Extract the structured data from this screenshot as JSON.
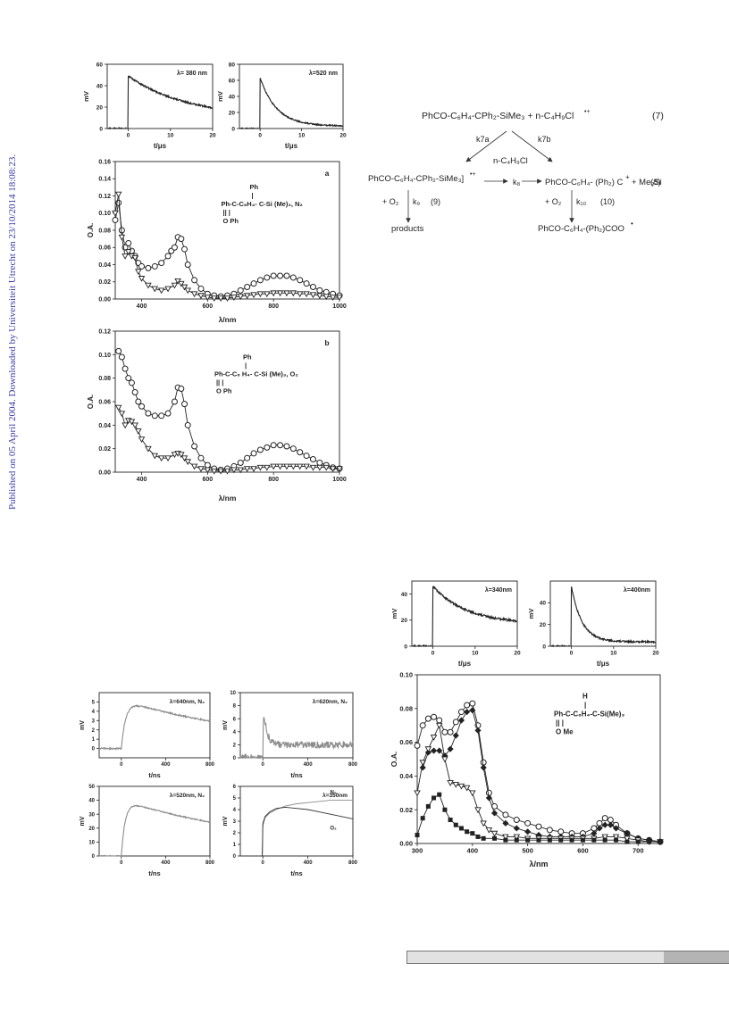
{
  "margin_note": "Published on 05 April 2004. Downloaded by Universiteit Utrecht on 23/10/2014 18:08:23.",
  "colors": {
    "line": "#222222",
    "gray_trace": "#8c8c8c",
    "footer_light": "#e2e2e2",
    "footer_dark": "#b4b4b4",
    "margin_note": "#3a3aa8"
  },
  "scheme": {
    "reactant": "PhCO-C₆H₄-CPh₂-SiMe₃  +  n-C₄H₉Cl",
    "reactant_sup": "•+",
    "eq7": "(7)",
    "k7a": "k7a",
    "k7b": "k7b",
    "nbucl": "n-C₄H₉Cl",
    "left_product": "PhCO-C₆H₄-CPh₂-SiMe₃]",
    "left_product_sup": "•+",
    "k8": "k₈",
    "right_product": "PhCO-C₆H₄- (Ph₂) C",
    "right_product_tail": "+  Me₃Si",
    "eq8": "(8)",
    "o2_left": "+ O₂",
    "k9": "k₉",
    "eq9": "(9)",
    "o2_right": "+ O₂",
    "k10": "k₁₀",
    "eq10": "(10)",
    "products": "products",
    "peroxyl": "PhCO-C₆H₄-(Ph₂)COO"
  },
  "chart_data": [
    {
      "type": "line",
      "id": "k1",
      "title": "λ= 380 nm",
      "ylabel": "mV",
      "xlabel": "t/μs",
      "xlim": [
        -5,
        20
      ],
      "ylim": [
        0,
        60
      ],
      "xticks": [
        0,
        10,
        20
      ],
      "yticks": [
        0,
        20,
        40,
        60
      ],
      "kinetic": {
        "baseline": 0,
        "t0": 0,
        "peak": 49,
        "tau": 14,
        "floor": 10,
        "noise": 0.8
      }
    },
    {
      "type": "line",
      "id": "k2",
      "title": "λ=520 nm",
      "ylabel": "mV",
      "xlabel": "t/μs",
      "xlim": [
        -5,
        20
      ],
      "ylim": [
        0,
        80
      ],
      "xticks": [
        0,
        10,
        20
      ],
      "yticks": [
        0,
        20,
        40,
        60,
        80
      ],
      "kinetic": {
        "baseline": 0,
        "t0": 0,
        "peak": 63,
        "tau": 4,
        "floor": 3,
        "noise": 0.8
      }
    },
    {
      "type": "line",
      "id": "spec_a",
      "panel_label": "a",
      "xlabel": "λ/nm",
      "ylabel": "O.A.",
      "xlim": [
        320,
        1000
      ],
      "ylim": [
        0,
        0.16
      ],
      "xticks": [
        400,
        600,
        800,
        1000
      ],
      "yticks": [
        0,
        0.02,
        0.04,
        0.06,
        0.08,
        0.1,
        0.12,
        0.14,
        0.16
      ],
      "structure": {
        "line1": "Ph",
        "line2": "|",
        "line3": "Ph-C-C₆H₄- C-Si (Me)₃, N₂",
        "line4": "||          |",
        "line5": "O        Ph"
      },
      "series": [
        {
          "marker": "circle",
          "x": [
            320,
            330,
            340,
            350,
            360,
            370,
            380,
            390,
            400,
            420,
            440,
            460,
            480,
            490,
            500,
            510,
            520,
            530,
            540,
            560,
            580,
            600,
            620,
            640,
            660,
            680,
            700,
            720,
            740,
            760,
            780,
            800,
            820,
            840,
            860,
            880,
            900,
            920,
            940,
            960,
            980,
            1000
          ],
          "y": [
            0.092,
            0.112,
            0.08,
            0.06,
            0.065,
            0.056,
            0.05,
            0.042,
            0.038,
            0.036,
            0.038,
            0.042,
            0.05,
            0.056,
            0.06,
            0.072,
            0.07,
            0.058,
            0.04,
            0.022,
            0.012,
            0.006,
            0.004,
            0.003,
            0.004,
            0.006,
            0.01,
            0.014,
            0.018,
            0.022,
            0.025,
            0.027,
            0.027,
            0.027,
            0.025,
            0.022,
            0.018,
            0.014,
            0.01,
            0.008,
            0.006,
            0.004
          ]
        },
        {
          "marker": "triangle-down",
          "x": [
            320,
            330,
            340,
            350,
            360,
            370,
            380,
            390,
            400,
            420,
            440,
            460,
            480,
            500,
            510,
            520,
            530,
            540,
            560,
            580,
            600,
            620,
            640,
            660,
            680,
            700,
            720,
            740,
            760,
            780,
            800,
            820,
            840,
            860,
            880,
            900,
            920,
            940,
            960,
            980,
            1000
          ],
          "y": [
            0.1,
            0.122,
            0.072,
            0.05,
            0.055,
            0.05,
            0.048,
            0.032,
            0.024,
            0.016,
            0.012,
            0.01,
            0.012,
            0.016,
            0.021,
            0.018,
            0.014,
            0.01,
            0.006,
            0.004,
            0.002,
            0.001,
            0.001,
            0.001,
            0.002,
            0.003,
            0.004,
            0.005,
            0.006,
            0.006,
            0.007,
            0.007,
            0.007,
            0.007,
            0.006,
            0.006,
            0.005,
            0.004,
            0.003,
            0.002,
            0.002
          ]
        }
      ]
    },
    {
      "type": "line",
      "id": "spec_b",
      "panel_label": "b",
      "xlabel": "λ/nm",
      "ylabel": "O.A.",
      "xlim": [
        320,
        1000
      ],
      "ylim": [
        0,
        0.12
      ],
      "xticks": [
        400,
        600,
        800,
        1000
      ],
      "yticks": [
        0,
        0.02,
        0.04,
        0.06,
        0.08,
        0.1,
        0.12
      ],
      "structure": {
        "line1": "Ph",
        "line2": "|",
        "line3": "Ph-C-C₆ H₄- C-Si (Me)₃, O₂",
        "line4": "||          |",
        "line5": "O        Ph"
      },
      "series": [
        {
          "marker": "circle",
          "x": [
            330,
            340,
            350,
            360,
            370,
            380,
            390,
            400,
            420,
            440,
            460,
            480,
            500,
            510,
            520,
            530,
            540,
            560,
            580,
            600,
            620,
            640,
            660,
            680,
            700,
            720,
            740,
            760,
            780,
            800,
            820,
            840,
            860,
            880,
            900,
            920,
            940,
            960,
            980,
            1000
          ],
          "y": [
            0.103,
            0.098,
            0.088,
            0.08,
            0.076,
            0.068,
            0.06,
            0.056,
            0.05,
            0.048,
            0.048,
            0.05,
            0.06,
            0.072,
            0.071,
            0.058,
            0.04,
            0.022,
            0.012,
            0.006,
            0.003,
            0.002,
            0.003,
            0.005,
            0.008,
            0.012,
            0.016,
            0.019,
            0.021,
            0.023,
            0.023,
            0.022,
            0.02,
            0.017,
            0.014,
            0.011,
            0.008,
            0.006,
            0.004,
            0.003
          ]
        },
        {
          "marker": "triangle-down",
          "x": [
            330,
            340,
            350,
            360,
            370,
            380,
            390,
            400,
            420,
            440,
            460,
            480,
            500,
            510,
            520,
            530,
            540,
            560,
            580,
            600,
            620,
            640,
            660,
            680,
            700,
            720,
            740,
            760,
            780,
            800,
            820,
            840,
            860,
            880,
            900,
            920,
            940,
            960,
            980,
            1000
          ],
          "y": [
            0.055,
            0.05,
            0.04,
            0.044,
            0.043,
            0.04,
            0.035,
            0.028,
            0.02,
            0.014,
            0.012,
            0.012,
            0.015,
            0.016,
            0.015,
            0.012,
            0.009,
            0.005,
            0.003,
            0.002,
            0.001,
            0.001,
            0.001,
            0.002,
            0.002,
            0.003,
            0.003,
            0.004,
            0.004,
            0.005,
            0.005,
            0.005,
            0.005,
            0.005,
            0.005,
            0.004,
            0.004,
            0.004,
            0.003,
            0.003
          ]
        }
      ]
    },
    {
      "type": "line",
      "id": "k3",
      "title": "λ=340nm",
      "ylabel": "mV",
      "xlabel": "t/μs",
      "xlim": [
        -5,
        20
      ],
      "ylim": [
        0,
        50
      ],
      "xticks": [
        0,
        10,
        20
      ],
      "yticks": [
        0,
        20,
        40
      ],
      "kinetic": {
        "baseline": 0,
        "t0": 0,
        "peak": 46,
        "tau": 8,
        "floor": 17,
        "noise": 0.8
      }
    },
    {
      "type": "line",
      "id": "k4",
      "title": "λ=400nm",
      "ylabel": "mV",
      "xlabel": "t/μs",
      "xlim": [
        -5,
        20
      ],
      "ylim": [
        0,
        60
      ],
      "xticks": [
        0,
        10,
        20
      ],
      "yticks": [
        0,
        20,
        40
      ],
      "kinetic": {
        "baseline": 0,
        "t0": 0,
        "peak": 55,
        "tau": 2.5,
        "floor": 4,
        "noise": 0.8
      }
    },
    {
      "type": "line",
      "id": "ns1",
      "title": "λ=640nm, N₂",
      "ylabel": "mV",
      "xlabel": "t/ns",
      "xlim": [
        -200,
        800
      ],
      "ylim": [
        -1,
        6
      ],
      "xticks": [
        0,
        400,
        800
      ],
      "yticks": [
        0,
        1,
        2,
        3,
        4,
        5
      ],
      "kinetic": {
        "baseline": 0,
        "t0": 0,
        "rise": 40,
        "peak": 5.2,
        "tau": 1400,
        "floor": 0,
        "noise": 0.08
      }
    },
    {
      "type": "line",
      "id": "ns2",
      "title": "λ=620nm, N₂",
      "ylabel": "mV",
      "xlabel": "t/ns",
      "xlim": [
        -200,
        800
      ],
      "ylim": [
        0,
        10
      ],
      "xticks": [
        0,
        400,
        800
      ],
      "yticks": [
        0,
        2,
        4,
        6,
        8,
        10
      ],
      "kinetic": {
        "baseline": 0,
        "t0": 0,
        "rise": 4,
        "peak": 9,
        "tau": 30,
        "floor": 2,
        "noise": 0.55
      }
    },
    {
      "type": "line",
      "id": "ns3",
      "title": "λ=520nm, N₂",
      "ylabel": "mV",
      "xlabel": "t/ns",
      "xlim": [
        -200,
        800
      ],
      "ylim": [
        0,
        50
      ],
      "xticks": [
        0,
        400,
        800
      ],
      "yticks": [
        0,
        10,
        20,
        30,
        40,
        50
      ],
      "kinetic": {
        "baseline": 0,
        "t0": 0,
        "rise": 35,
        "peak": 40,
        "tau": 1600,
        "floor": 0,
        "noise": 0.4
      }
    },
    {
      "type": "line",
      "id": "ns4",
      "title": "λ=350nm",
      "ylabel": "mV",
      "xlabel": "t/ns",
      "xlim": [
        -200,
        800
      ],
      "ylim": [
        0,
        6
      ],
      "xticks": [
        0,
        400,
        800
      ],
      "yticks": [
        0,
        1,
        2,
        3,
        4,
        5,
        6
      ],
      "series": [
        {
          "name": "N₂",
          "x": [
            -200,
            -5,
            0,
            20,
            60,
            120,
            200,
            300,
            400,
            500,
            600,
            700,
            800
          ],
          "y": [
            0,
            0,
            2.6,
            3.3,
            3.7,
            4.0,
            4.3,
            4.5,
            4.6,
            4.7,
            4.8,
            4.8,
            4.8
          ]
        },
        {
          "name": "O₂",
          "x": [
            -200,
            -5,
            0,
            20,
            60,
            120,
            200,
            300,
            400,
            500,
            600,
            700,
            800
          ],
          "y": [
            0,
            0,
            2.8,
            3.4,
            3.8,
            4.1,
            4.2,
            4.1,
            4.0,
            3.8,
            3.6,
            3.4,
            3.2
          ]
        }
      ]
    },
    {
      "type": "line",
      "id": "spec_c",
      "xlabel": "λ/nm",
      "ylabel": "O.A.",
      "xlim": [
        300,
        740
      ],
      "ylim": [
        0,
        0.1
      ],
      "xticks": [
        300,
        400,
        500,
        600,
        700
      ],
      "yticks": [
        0,
        0.02,
        0.04,
        0.06,
        0.08,
        0.1
      ],
      "structure": {
        "line1": "H",
        "line2": "|",
        "line3": "Ph-C-C₆H₄-C-Si(Me)₃",
        "line4": "||          |",
        "line5": "O        Me"
      },
      "series": [
        {
          "marker": "circle",
          "x": [
            300,
            310,
            320,
            330,
            340,
            350,
            360,
            370,
            380,
            390,
            400,
            410,
            420,
            430,
            440,
            460,
            480,
            500,
            520,
            540,
            560,
            580,
            600,
            620,
            630,
            640,
            650,
            660,
            680,
            700,
            720,
            740
          ],
          "y": [
            0.058,
            0.07,
            0.074,
            0.075,
            0.073,
            0.066,
            0.066,
            0.072,
            0.078,
            0.082,
            0.083,
            0.07,
            0.048,
            0.03,
            0.022,
            0.017,
            0.014,
            0.012,
            0.01,
            0.008,
            0.007,
            0.006,
            0.006,
            0.009,
            0.012,
            0.015,
            0.014,
            0.011,
            0.006,
            0.003,
            0.002,
            0.001
          ]
        },
        {
          "marker": "diamond",
          "x": [
            310,
            320,
            330,
            340,
            350,
            360,
            370,
            380,
            390,
            400,
            410,
            420,
            430,
            440,
            460,
            480,
            500,
            520,
            540,
            560,
            580,
            600,
            620,
            630,
            640,
            650,
            660,
            680,
            700,
            720,
            740
          ],
          "y": [
            0.045,
            0.054,
            0.055,
            0.055,
            0.052,
            0.056,
            0.064,
            0.073,
            0.078,
            0.079,
            0.067,
            0.045,
            0.027,
            0.018,
            0.012,
            0.009,
            0.007,
            0.005,
            0.004,
            0.004,
            0.004,
            0.004,
            0.006,
            0.009,
            0.011,
            0.011,
            0.009,
            0.006,
            0.003,
            0.002,
            0.001
          ]
        },
        {
          "marker": "triangle-down",
          "x": [
            300,
            310,
            320,
            330,
            340,
            350,
            360,
            370,
            380,
            390,
            400,
            410,
            420,
            430,
            440,
            460,
            480,
            500,
            520,
            540,
            560,
            580,
            600,
            620,
            640,
            660,
            680,
            700,
            720,
            740
          ],
          "y": [
            0.03,
            0.048,
            0.056,
            0.063,
            0.07,
            0.05,
            0.036,
            0.035,
            0.034,
            0.033,
            0.03,
            0.02,
            0.012,
            0.008,
            0.006,
            0.004,
            0.004,
            0.003,
            0.003,
            0.003,
            0.003,
            0.003,
            0.003,
            0.003,
            0.004,
            0.004,
            0.003,
            0.002,
            0.001,
            0.001
          ]
        },
        {
          "marker": "square",
          "x": [
            300,
            310,
            320,
            330,
            340,
            350,
            360,
            370,
            380,
            390,
            400,
            410,
            420,
            440,
            460,
            480,
            500,
            520,
            540,
            560,
            580,
            600,
            620,
            640,
            660,
            680,
            700,
            720,
            740
          ],
          "y": [
            0.005,
            0.015,
            0.022,
            0.027,
            0.029,
            0.02,
            0.014,
            0.011,
            0.009,
            0.007,
            0.006,
            0.004,
            0.003,
            0.003,
            0.002,
            0.002,
            0.002,
            0.002,
            0.002,
            0.002,
            0.002,
            0.002,
            0.002,
            0.002,
            0.002,
            0.001,
            0.001,
            0.001,
            0.001
          ]
        }
      ]
    }
  ]
}
